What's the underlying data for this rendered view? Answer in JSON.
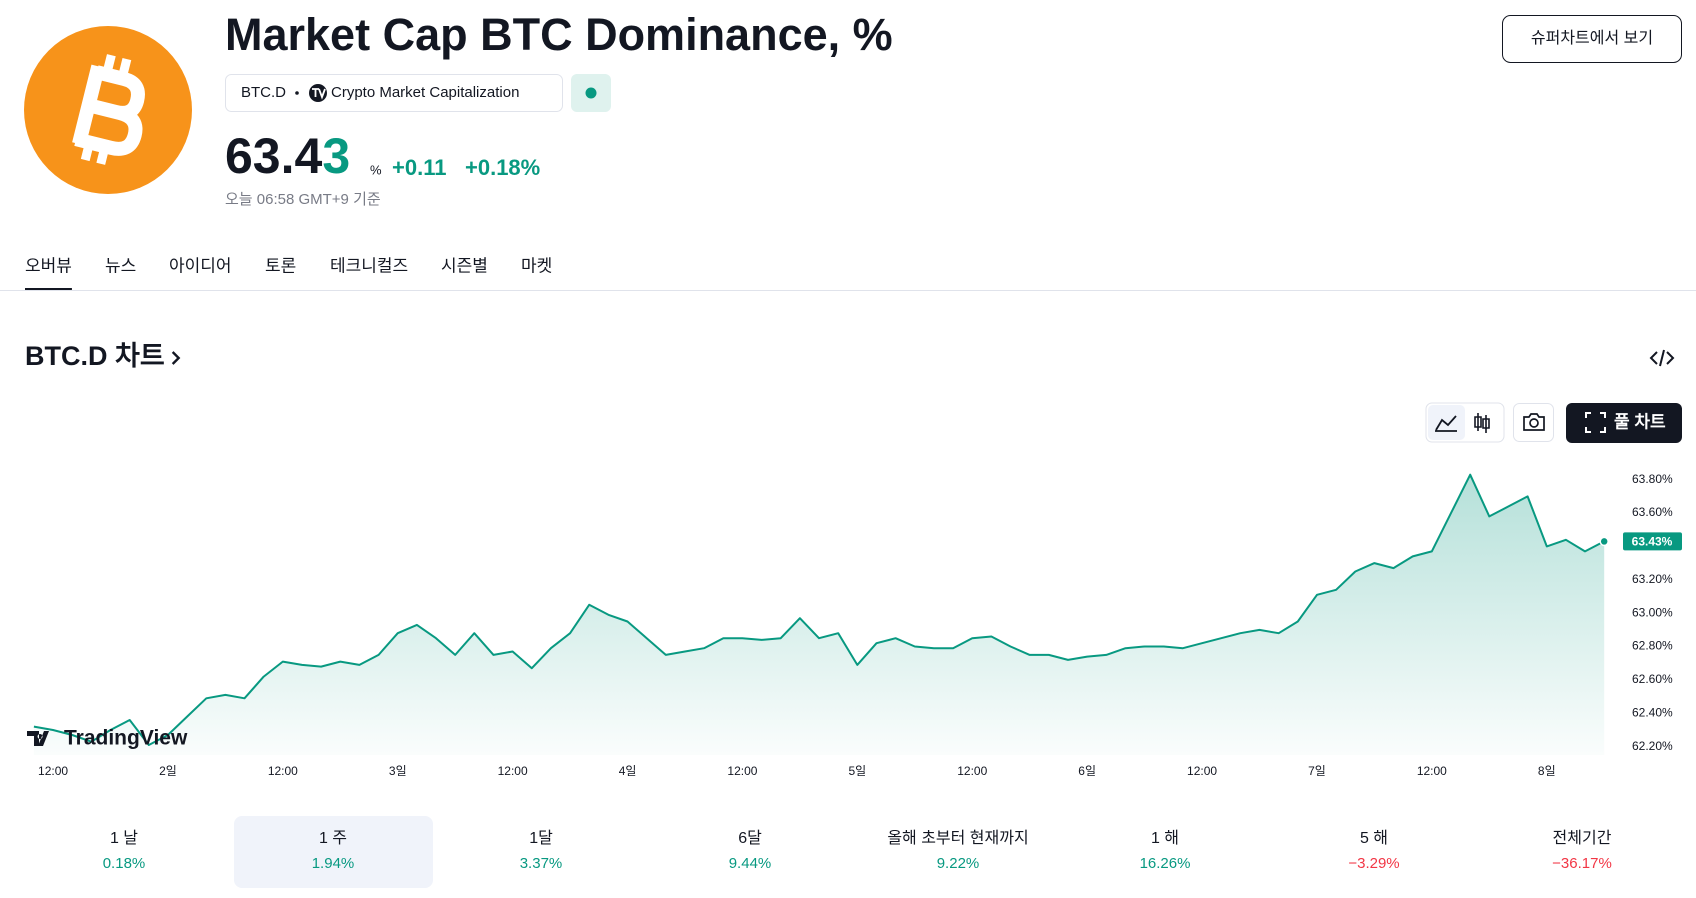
{
  "header": {
    "title": "Market Cap BTC Dominance, %",
    "symbol": "BTC.D",
    "exchange": "Crypto Market Capitalization",
    "price": "63.43",
    "price_unit": "%",
    "change": "+0.11",
    "change_percent": "+0.18%",
    "timestamp": "오늘 06:58 GMT+9 기준",
    "button": "슈퍼차트에서 보기"
  },
  "tabs": [
    "오버뷰",
    "뉴스",
    "아이디어",
    "토론",
    "테크니컬즈",
    "시즌별",
    "마켓"
  ],
  "section_title": "BTC.D 차트",
  "toolbar": {
    "full_chart": "풀 차트"
  },
  "chart_data": {
    "type": "area",
    "color": "#089981",
    "watermark": "TradingView",
    "last_value_label": "63.43%",
    "grid": false,
    "categories": [
      null,
      "12:00",
      null,
      null,
      null,
      null,
      null,
      "2일",
      null,
      null,
      null,
      null,
      null,
      "12:00",
      null,
      null,
      null,
      null,
      null,
      "3일",
      null,
      null,
      null,
      null,
      null,
      "12:00",
      null,
      null,
      null,
      null,
      null,
      "4일",
      null,
      null,
      null,
      null,
      null,
      "12:00",
      null,
      null,
      null,
      null,
      null,
      "5일",
      null,
      null,
      null,
      null,
      null,
      "12:00",
      null,
      null,
      null,
      null,
      null,
      "6일",
      null,
      null,
      null,
      null,
      null,
      "12:00",
      null,
      null,
      null,
      null,
      null,
      "7일",
      null,
      null,
      null,
      null,
      null,
      "12:00",
      null,
      null,
      null,
      null,
      null,
      "8일",
      null,
      null,
      null
    ],
    "values": [
      62.32,
      62.3,
      62.27,
      62.23,
      62.3,
      62.36,
      62.21,
      62.27,
      62.38,
      62.49,
      62.51,
      62.49,
      62.62,
      62.71,
      62.69,
      62.68,
      62.71,
      62.69,
      62.75,
      62.88,
      62.93,
      62.85,
      62.75,
      62.88,
      62.75,
      62.77,
      62.67,
      62.79,
      62.88,
      63.05,
      62.99,
      62.95,
      62.85,
      62.75,
      62.77,
      62.79,
      62.85,
      62.85,
      62.84,
      62.85,
      62.97,
      62.85,
      62.88,
      62.69,
      62.82,
      62.85,
      62.8,
      62.79,
      62.79,
      62.85,
      62.86,
      62.8,
      62.75,
      62.75,
      62.72,
      62.74,
      62.75,
      62.79,
      62.8,
      62.8,
      62.79,
      62.82,
      62.85,
      62.88,
      62.9,
      62.88,
      62.95,
      63.11,
      63.14,
      63.25,
      63.3,
      63.27,
      63.34,
      63.37,
      63.6,
      63.83,
      63.58,
      63.64,
      63.7,
      63.4,
      63.44,
      63.37,
      63.43
    ],
    "ylim": [
      62.15,
      63.9
    ],
    "yticks": [
      {
        "value": 62.2,
        "label": "62.20%"
      },
      {
        "value": 62.4,
        "label": "62.40%"
      },
      {
        "value": 62.6,
        "label": "62.60%"
      },
      {
        "value": 62.8,
        "label": "62.80%"
      },
      {
        "value": 63,
        "label": "63.00%"
      },
      {
        "value": 63.2,
        "label": "63.20%"
      },
      {
        "value": 63.4,
        "label": "63.40%"
      },
      {
        "value": 63.6,
        "label": "63.60%"
      },
      {
        "value": 63.8,
        "label": "63.80%"
      }
    ]
  },
  "periods": [
    {
      "label": "1 날",
      "change": "0.18%",
      "color": "#089981"
    },
    {
      "label": "1 주",
      "change": "1.94%",
      "color": "#089981",
      "selected": true
    },
    {
      "label": "1달",
      "change": "3.37%",
      "color": "#089981"
    },
    {
      "label": "6달",
      "change": "9.44%",
      "color": "#089981"
    },
    {
      "label": "올해 초부터 현재까지",
      "change": "9.22%",
      "color": "#089981"
    },
    {
      "label": "1 해",
      "change": "16.26%",
      "color": "#089981"
    },
    {
      "label": "5 해",
      "change": "−3.29%",
      "color": "#f23645"
    },
    {
      "label": "전체기간",
      "change": "−36.17%",
      "color": "#f23645"
    }
  ]
}
